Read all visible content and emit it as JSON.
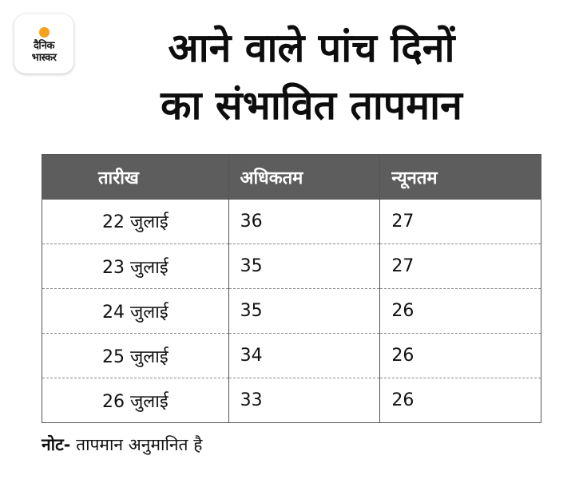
{
  "logo": {
    "line1": "दैनिक",
    "line2": "भास्कर",
    "accent_color": "#f6a11b"
  },
  "title": {
    "line1": "आने वाले पांच दिनों",
    "line2": "का संभावित तापमान"
  },
  "table": {
    "header_color": "#5d5d5d",
    "headers": [
      "तारीख",
      "अधिकतम",
      "न्यूनतम"
    ],
    "rows": [
      {
        "date": "22 जुलाई",
        "max": "36",
        "min": "27"
      },
      {
        "date": "23 जुलाई",
        "max": "35",
        "min": "27"
      },
      {
        "date": "24 जुलाई",
        "max": "35",
        "min": "26"
      },
      {
        "date": "25 जुलाई",
        "max": "34",
        "min": "26"
      },
      {
        "date": "26 जुलाई",
        "max": "33",
        "min": "26"
      }
    ]
  },
  "note": {
    "label": "नोट-",
    "text": "तापमान अनुमानित है"
  }
}
